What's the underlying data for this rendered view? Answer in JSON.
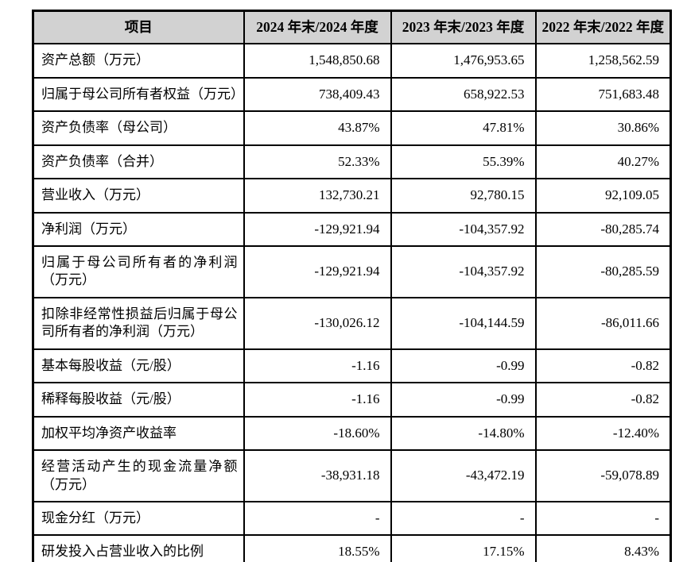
{
  "table": {
    "headers": {
      "item": "项目",
      "y2024": "2024 年末/2024 年度",
      "y2023": "2023 年末/2023 年度",
      "y2022": "2022 年末/2022 年度"
    },
    "rows": [
      {
        "label": "资产总额（万元）",
        "values": [
          "1,548,850.68",
          "1,476,953.65",
          "1,258,562.59"
        ]
      },
      {
        "label": "归属于母公司所有者权益（万元）",
        "values": [
          "738,409.43",
          "658,922.53",
          "751,683.48"
        ]
      },
      {
        "label": "资产负债率（母公司）",
        "values": [
          "43.87%",
          "47.81%",
          "30.86%"
        ]
      },
      {
        "label": "资产负债率（合并）",
        "values": [
          "52.33%",
          "55.39%",
          "40.27%"
        ]
      },
      {
        "label": "营业收入（万元）",
        "values": [
          "132,730.21",
          "92,780.15",
          "92,109.05"
        ]
      },
      {
        "label": "净利润（万元）",
        "values": [
          "-129,921.94",
          "-104,357.92",
          "-80,285.74"
        ]
      },
      {
        "label": "归属于母公司所有者的净利润（万元）",
        "values": [
          "-129,921.94",
          "-104,357.92",
          "-80,285.59"
        ]
      },
      {
        "label": "扣除非经常性损益后归属于母公司所有者的净利润（万元）",
        "values": [
          "-130,026.12",
          "-104,144.59",
          "-86,011.66"
        ]
      },
      {
        "label": "基本每股收益（元/股）",
        "values": [
          "-1.16",
          "-0.99",
          "-0.82"
        ]
      },
      {
        "label": "稀释每股收益（元/股）",
        "values": [
          "-1.16",
          "-0.99",
          "-0.82"
        ]
      },
      {
        "label": "加权平均净资产收益率",
        "values": [
          "-18.60%",
          "-14.80%",
          "-12.40%"
        ]
      },
      {
        "label": "经营活动产生的现金流量净额（万元）",
        "values": [
          "-38,931.18",
          "-43,472.19",
          "-59,078.89"
        ]
      },
      {
        "label": "现金分红（万元）",
        "values": [
          "-",
          "-",
          "-"
        ]
      },
      {
        "label": "研发投入占营业收入的比例",
        "values": [
          "18.55%",
          "17.15%",
          "8.43%"
        ]
      }
    ],
    "colors": {
      "header_bg": "#d2d2d2",
      "border": "#000000",
      "text": "#000000",
      "background": "#ffffff"
    }
  }
}
